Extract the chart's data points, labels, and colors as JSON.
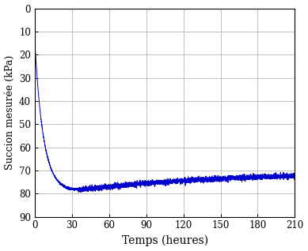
{
  "title": "",
  "xlabel": "Temps (heures)",
  "ylabel": "Succion mesurée (kPa)",
  "line_color": "#0000cc",
  "line_width": 0.7,
  "xlim": [
    0,
    210
  ],
  "ylim": [
    90,
    0
  ],
  "xticks": [
    0,
    30,
    60,
    90,
    120,
    150,
    180,
    210
  ],
  "yticks": [
    0,
    10,
    20,
    30,
    40,
    50,
    60,
    70,
    80,
    90
  ],
  "grid_color": "#aaaaaa",
  "background_color": "#ffffff",
  "noise_seed": 42,
  "curve_params": {
    "start_val": 15.0,
    "min_val": 79.0,
    "final_val": 70.5,
    "tau_decay": 7.0,
    "tau_rise": 120.0,
    "t_min": 28.0,
    "total_time": 210,
    "n_points": 5000,
    "noise_base": 0.25,
    "noise_after": 0.55
  }
}
